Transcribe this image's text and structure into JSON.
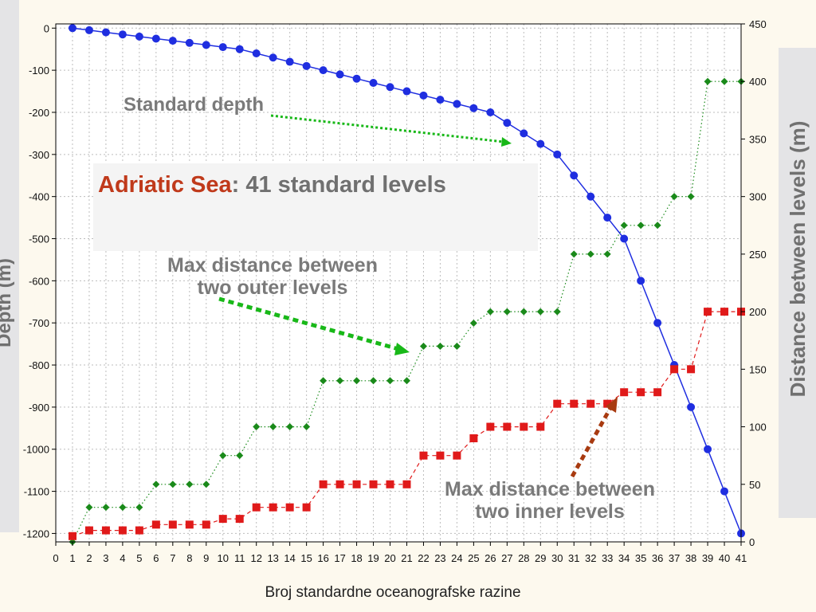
{
  "chart_data": {
    "type": "line",
    "xlabel": "Broj standardne oceanografske razine",
    "ylabel": "Depth (m)",
    "y2label": "Distance between levels (m)",
    "xlim": [
      0,
      41
    ],
    "ylim": [
      -1220,
      10
    ],
    "y2lim": [
      0,
      450
    ],
    "x_ticks": [
      0,
      1,
      2,
      3,
      4,
      5,
      6,
      7,
      8,
      9,
      10,
      11,
      12,
      13,
      14,
      15,
      16,
      17,
      18,
      19,
      20,
      21,
      22,
      23,
      24,
      25,
      26,
      27,
      28,
      29,
      30,
      31,
      32,
      33,
      34,
      35,
      36,
      37,
      38,
      39,
      40,
      41
    ],
    "y_ticks": [
      0,
      -100,
      -200,
      -300,
      -400,
      -500,
      -600,
      -700,
      -800,
      -900,
      -1000,
      -1100,
      -1200
    ],
    "y_tick_labels": [
      "0",
      "-100",
      "-200",
      "-300",
      "-400",
      "-500",
      "-600",
      "-700",
      "-800",
      "-900",
      "-1000",
      "-1100",
      "-1200"
    ],
    "y2_ticks": [
      0,
      50,
      100,
      150,
      200,
      250,
      300,
      350,
      400,
      450
    ],
    "grid": true,
    "series": [
      {
        "key": "standard_depth",
        "axis": "left",
        "color": "#1f2ee0",
        "marker": "circle",
        "line": "solid",
        "x": [
          1,
          2,
          3,
          4,
          5,
          6,
          7,
          8,
          9,
          10,
          11,
          12,
          13,
          14,
          15,
          16,
          17,
          18,
          19,
          20,
          21,
          22,
          23,
          24,
          25,
          26,
          27,
          28,
          29,
          30,
          31,
          32,
          33,
          34,
          35,
          36,
          37,
          38,
          39,
          40,
          41
        ],
        "values": [
          0,
          -5,
          -10,
          -15,
          -20,
          -25,
          -30,
          -35,
          -40,
          -45,
          -50,
          -60,
          -70,
          -80,
          -90,
          -100,
          -110,
          -120,
          -130,
          -140,
          -150,
          -160,
          -170,
          -180,
          -190,
          -200,
          -225,
          -250,
          -275,
          -300,
          -350,
          -400,
          -450,
          -500,
          -600,
          -700,
          -800,
          -900,
          -1000,
          -1100,
          -1200
        ]
      },
      {
        "key": "max_outer",
        "axis": "right",
        "color": "#1a8a1a",
        "marker": "diamond",
        "line": "dotted",
        "x": [
          1,
          2,
          3,
          4,
          5,
          6,
          7,
          8,
          9,
          10,
          11,
          12,
          13,
          14,
          15,
          16,
          17,
          18,
          19,
          20,
          21,
          22,
          23,
          24,
          25,
          26,
          27,
          28,
          29,
          30,
          31,
          32,
          33,
          34,
          35,
          36,
          37,
          38,
          39,
          40,
          41
        ],
        "values": [
          0,
          30,
          30,
          30,
          30,
          50,
          50,
          50,
          50,
          75,
          75,
          100,
          100,
          100,
          100,
          140,
          140,
          140,
          140,
          140,
          140,
          170,
          170,
          170,
          190,
          200,
          200,
          200,
          200,
          200,
          250,
          250,
          250,
          275,
          275,
          275,
          300,
          300,
          400,
          400,
          400
        ]
      },
      {
        "key": "max_inner",
        "axis": "right",
        "color": "#e01a1a",
        "marker": "square",
        "line": "dashed",
        "x": [
          1,
          2,
          3,
          4,
          5,
          6,
          7,
          8,
          9,
          10,
          11,
          12,
          13,
          14,
          15,
          16,
          17,
          18,
          19,
          20,
          21,
          22,
          23,
          24,
          25,
          26,
          27,
          28,
          29,
          30,
          31,
          32,
          33,
          34,
          35,
          36,
          37,
          38,
          39,
          40,
          41
        ],
        "values": [
          5,
          10,
          10,
          10,
          10,
          15,
          15,
          15,
          15,
          20,
          20,
          30,
          30,
          30,
          30,
          50,
          50,
          50,
          50,
          50,
          50,
          75,
          75,
          75,
          90,
          100,
          100,
          100,
          100,
          120,
          120,
          120,
          120,
          130,
          130,
          130,
          150,
          150,
          200,
          200,
          200
        ]
      }
    ]
  },
  "annotations": {
    "standard_depth": "Standard depth",
    "outer_line1": "Max distance between",
    "outer_line2": "two outer levels",
    "inner_line1": "Max distance between",
    "inner_line2": "two inner levels"
  },
  "title_box": {
    "accent": "Adriatic Sea",
    "rest": ": 41 standard levels"
  }
}
